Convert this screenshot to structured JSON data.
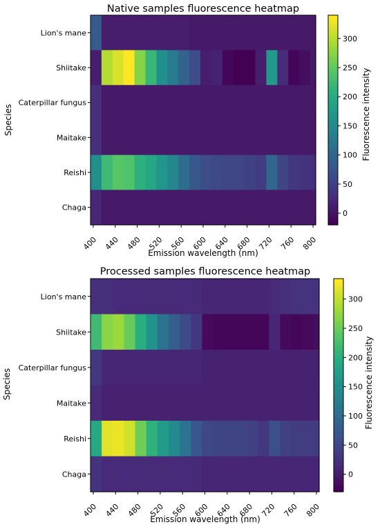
{
  "chart_data": [
    {
      "type": "heatmap",
      "title": "Native samples fluorescence heatmap",
      "xlabel": "Emission wavelength (nm)",
      "ylabel": "Species",
      "colorbar_label": "Fluorescence intensity",
      "colormap": "viridis",
      "zlim": [
        -20,
        340
      ],
      "colorbar_ticks": [
        "0",
        "50",
        "100",
        "150",
        "200",
        "250",
        "300"
      ],
      "x_ticks": [
        "400",
        "440",
        "480",
        "520",
        "560",
        "600",
        "640",
        "680",
        "720",
        "760",
        "800"
      ],
      "x": [
        400,
        410,
        420,
        430,
        440,
        450,
        460,
        470,
        480,
        490,
        500,
        510,
        520,
        530,
        540,
        550,
        560,
        570,
        580,
        590,
        600,
        610,
        620,
        630,
        640,
        650,
        660,
        670,
        680,
        690,
        700,
        710,
        720,
        730,
        740,
        750,
        760,
        770,
        780,
        790,
        800
      ],
      "categories": [
        "Lion's mane",
        "Shiitake",
        "Caterpillar fungus",
        "Maitake",
        "Reishi",
        "Chaga"
      ],
      "values": [
        [
          85,
          85,
          10,
          10,
          10,
          10,
          10,
          10,
          10,
          10,
          10,
          10,
          10,
          10,
          10,
          10,
          10,
          10,
          5,
          5,
          5,
          5,
          5,
          5,
          5,
          5,
          5,
          5,
          5,
          5,
          5,
          5,
          5,
          5,
          5,
          5,
          5,
          5,
          5,
          5,
          5
        ],
        [
          10,
          10,
          300,
          300,
          320,
          320,
          340,
          340,
          275,
          275,
          220,
          220,
          160,
          160,
          130,
          130,
          95,
          95,
          65,
          65,
          10,
          10,
          15,
          15,
          -15,
          -15,
          -20,
          -20,
          -20,
          -20,
          10,
          10,
          175,
          175,
          25,
          25,
          -15,
          -15,
          -5,
          -5,
          5
        ],
        [
          30,
          30,
          5,
          5,
          5,
          5,
          5,
          5,
          5,
          5,
          5,
          5,
          5,
          5,
          5,
          5,
          5,
          5,
          5,
          5,
          5,
          5,
          5,
          5,
          5,
          5,
          5,
          5,
          5,
          5,
          5,
          5,
          5,
          5,
          5,
          5,
          5,
          5,
          5,
          5,
          5
        ],
        [
          30,
          30,
          5,
          5,
          5,
          5,
          5,
          5,
          5,
          5,
          5,
          5,
          5,
          5,
          5,
          5,
          5,
          5,
          5,
          5,
          5,
          5,
          5,
          5,
          5,
          5,
          5,
          5,
          5,
          5,
          5,
          5,
          5,
          5,
          5,
          5,
          5,
          5,
          5,
          5,
          5
        ],
        [
          160,
          160,
          225,
          225,
          245,
          245,
          240,
          240,
          210,
          210,
          195,
          195,
          170,
          170,
          145,
          145,
          110,
          110,
          80,
          80,
          65,
          65,
          60,
          60,
          55,
          55,
          55,
          55,
          50,
          50,
          45,
          45,
          100,
          100,
          55,
          55,
          40,
          40,
          35,
          35,
          30
        ],
        [
          20,
          20,
          5,
          5,
          5,
          5,
          5,
          5,
          5,
          5,
          5,
          5,
          5,
          5,
          5,
          5,
          5,
          5,
          5,
          5,
          5,
          5,
          5,
          5,
          5,
          5,
          5,
          5,
          5,
          5,
          5,
          5,
          5,
          5,
          5,
          5,
          5,
          5,
          5,
          5,
          5
        ]
      ]
    },
    {
      "type": "heatmap",
      "title": "Processed samples fluorescence heatmap",
      "xlabel": "Emission wavelength (nm)",
      "ylabel": "Species",
      "colorbar_label": "Fluorescence intensity",
      "colormap": "viridis",
      "zlim": [
        -30,
        335
      ],
      "colorbar_ticks": [
        "0",
        "50",
        "100",
        "150",
        "200",
        "250",
        "300"
      ],
      "x_ticks": [
        "400",
        "440",
        "480",
        "520",
        "560",
        "600",
        "640",
        "680",
        "720",
        "760",
        "800"
      ],
      "x": [
        400,
        410,
        420,
        430,
        440,
        450,
        460,
        470,
        480,
        490,
        500,
        510,
        520,
        530,
        540,
        550,
        560,
        570,
        580,
        590,
        600,
        610,
        620,
        630,
        640,
        650,
        660,
        670,
        680,
        690,
        700,
        710,
        720,
        730,
        740,
        750,
        760,
        770,
        780,
        790,
        800
      ],
      "categories": [
        "Lion's mane",
        "Shiitake",
        "Caterpillar fungus",
        "Maitake",
        "Reishi",
        "Chaga"
      ],
      "values": [
        [
          20,
          20,
          20,
          20,
          15,
          15,
          15,
          15,
          15,
          15,
          15,
          15,
          15,
          15,
          15,
          15,
          15,
          15,
          15,
          15,
          10,
          10,
          10,
          10,
          10,
          10,
          10,
          10,
          10,
          10,
          10,
          10,
          15,
          15,
          20,
          20,
          25,
          25,
          25,
          25,
          25
        ],
        [
          220,
          220,
          270,
          270,
          280,
          280,
          250,
          250,
          200,
          200,
          155,
          155,
          110,
          110,
          80,
          80,
          55,
          55,
          30,
          30,
          -20,
          -20,
          -25,
          -25,
          -25,
          -25,
          -25,
          -25,
          -25,
          -25,
          -25,
          -25,
          10,
          10,
          -20,
          -20,
          -25,
          -25,
          -20,
          -20,
          -15
        ],
        [
          30,
          30,
          10,
          10,
          10,
          10,
          10,
          10,
          10,
          10,
          10,
          10,
          10,
          10,
          10,
          10,
          10,
          10,
          10,
          10,
          5,
          5,
          5,
          5,
          5,
          5,
          5,
          5,
          5,
          5,
          5,
          5,
          5,
          5,
          5,
          5,
          5,
          5,
          5,
          5,
          5
        ],
        [
          15,
          15,
          5,
          5,
          5,
          5,
          5,
          5,
          5,
          5,
          5,
          5,
          5,
          5,
          5,
          5,
          5,
          5,
          5,
          5,
          5,
          5,
          5,
          5,
          5,
          5,
          5,
          5,
          5,
          5,
          5,
          5,
          5,
          5,
          5,
          5,
          5,
          5,
          5,
          5,
          5
        ],
        [
          190,
          190,
          320,
          320,
          325,
          325,
          310,
          310,
          255,
          255,
          205,
          205,
          170,
          170,
          145,
          145,
          110,
          110,
          70,
          70,
          50,
          50,
          45,
          45,
          45,
          45,
          45,
          45,
          40,
          40,
          30,
          30,
          60,
          60,
          40,
          40,
          35,
          35,
          35,
          35,
          35
        ],
        [
          25,
          25,
          15,
          15,
          15,
          15,
          15,
          15,
          15,
          15,
          15,
          15,
          15,
          15,
          15,
          15,
          15,
          15,
          15,
          15,
          10,
          10,
          10,
          10,
          10,
          10,
          10,
          10,
          10,
          10,
          10,
          10,
          10,
          10,
          10,
          10,
          10,
          10,
          10,
          10,
          10
        ]
      ]
    }
  ]
}
